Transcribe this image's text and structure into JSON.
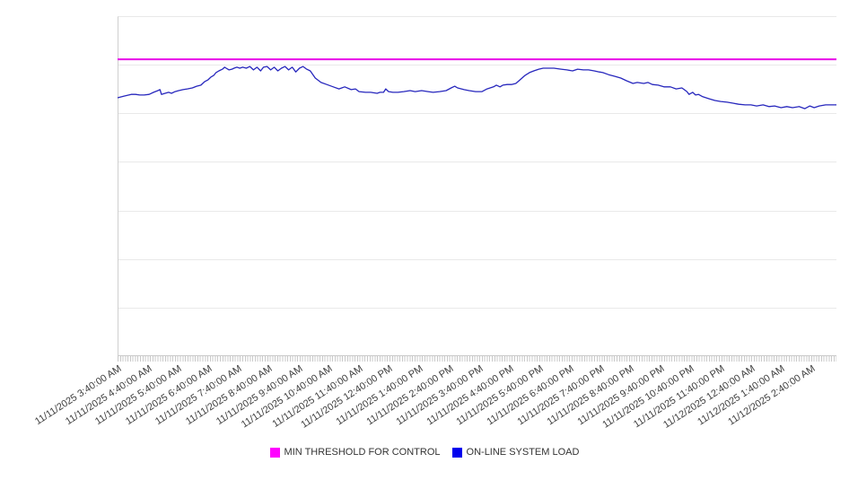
{
  "chart_data": {
    "type": "line",
    "title": "",
    "x_axis": {
      "labels": [
        "11/11/2025 3:40:00 AM",
        "11/11/2025 4:40:00 AM",
        "11/11/2025 5:40:00 AM",
        "11/11/2025 6:40:00 AM",
        "11/11/2025 7:40:00 AM",
        "11/11/2025 8:40:00 AM",
        "11/11/2025 9:40:00 AM",
        "11/11/2025 10:40:00 AM",
        "11/11/2025 11:40:00 AM",
        "11/11/2025 12:40:00 PM",
        "11/11/2025 1:40:00 PM",
        "11/11/2025 2:40:00 PM",
        "11/11/2025 3:40:00 PM",
        "11/11/2025 4:40:00 PM",
        "11/11/2025 5:40:00 PM",
        "11/11/2025 6:40:00 PM",
        "11/11/2025 7:40:00 PM",
        "11/11/2025 8:40:00 PM",
        "11/11/2025 9:40:00 PM",
        "11/11/2025 10:40:00 PM",
        "11/11/2025 11:40:00 PM",
        "11/12/2025 12:40:00 AM",
        "11/12/2025 1:40:00 AM",
        "11/12/2025 2:40:00 AM"
      ],
      "label_rotation_deg": -33,
      "minor_tick_interval_minutes": 5
    },
    "y_axis": {
      "tick_labels_visible": false,
      "gridline_divisions": 7,
      "range": [
        0,
        100
      ],
      "units": "percent_of_plot_height"
    },
    "series": [
      {
        "name": "MIN THRESHOLD FOR CONTROL",
        "type": "threshold-hline",
        "color": "#e800e8",
        "value": 87.3
      },
      {
        "name": "ON-LINE SYSTEM LOAD",
        "type": "line",
        "color": "#2727bd",
        "points": [
          [
            0,
            76.0
          ],
          [
            0.9,
            76.5
          ],
          [
            1.9,
            77.0
          ],
          [
            2.5,
            77.0
          ],
          [
            3.1,
            76.8
          ],
          [
            3.7,
            76.8
          ],
          [
            4.4,
            77.0
          ],
          [
            5.0,
            77.6
          ],
          [
            5.6,
            78.1
          ],
          [
            5.9,
            78.4
          ],
          [
            6.1,
            77.0
          ],
          [
            6.6,
            77.3
          ],
          [
            7.1,
            77.6
          ],
          [
            7.5,
            77.3
          ],
          [
            8.0,
            77.8
          ],
          [
            8.5,
            78.1
          ],
          [
            9.1,
            78.4
          ],
          [
            9.7,
            78.6
          ],
          [
            10.4,
            78.9
          ],
          [
            11.0,
            79.4
          ],
          [
            11.6,
            79.7
          ],
          [
            12.1,
            80.7
          ],
          [
            12.6,
            81.3
          ],
          [
            13.0,
            82.1
          ],
          [
            13.4,
            82.6
          ],
          [
            13.7,
            83.4
          ],
          [
            14.1,
            83.9
          ],
          [
            14.6,
            84.4
          ],
          [
            14.9,
            85.0
          ],
          [
            15.1,
            84.7
          ],
          [
            15.5,
            84.2
          ],
          [
            15.9,
            84.4
          ],
          [
            16.2,
            84.7
          ],
          [
            16.6,
            85.0
          ],
          [
            17.0,
            84.7
          ],
          [
            17.4,
            85.0
          ],
          [
            17.9,
            84.7
          ],
          [
            18.4,
            85.2
          ],
          [
            18.9,
            84.2
          ],
          [
            19.4,
            85.0
          ],
          [
            19.9,
            83.9
          ],
          [
            20.3,
            85.0
          ],
          [
            20.8,
            85.2
          ],
          [
            21.3,
            84.2
          ],
          [
            21.8,
            85.0
          ],
          [
            22.3,
            83.9
          ],
          [
            22.8,
            84.7
          ],
          [
            23.3,
            85.2
          ],
          [
            23.8,
            84.2
          ],
          [
            24.3,
            85.0
          ],
          [
            24.8,
            83.6
          ],
          [
            25.3,
            84.7
          ],
          [
            25.8,
            85.2
          ],
          [
            26.3,
            84.4
          ],
          [
            26.8,
            83.9
          ],
          [
            27.5,
            81.8
          ],
          [
            28.3,
            80.5
          ],
          [
            29.1,
            79.9
          ],
          [
            30.0,
            79.2
          ],
          [
            30.8,
            78.6
          ],
          [
            31.6,
            79.2
          ],
          [
            32.5,
            78.4
          ],
          [
            33.1,
            78.6
          ],
          [
            33.6,
            77.8
          ],
          [
            34.5,
            77.6
          ],
          [
            35.2,
            77.6
          ],
          [
            36.1,
            77.3
          ],
          [
            36.5,
            77.6
          ],
          [
            37.0,
            77.6
          ],
          [
            37.3,
            78.6
          ],
          [
            37.7,
            77.8
          ],
          [
            38.3,
            77.6
          ],
          [
            39.0,
            77.6
          ],
          [
            39.8,
            77.8
          ],
          [
            40.7,
            78.1
          ],
          [
            41.4,
            77.8
          ],
          [
            42.3,
            78.1
          ],
          [
            43.2,
            77.8
          ],
          [
            43.9,
            77.6
          ],
          [
            44.8,
            77.8
          ],
          [
            45.7,
            78.1
          ],
          [
            46.4,
            78.9
          ],
          [
            46.9,
            79.4
          ],
          [
            47.3,
            78.9
          ],
          [
            48.2,
            78.4
          ],
          [
            48.9,
            78.1
          ],
          [
            49.8,
            77.8
          ],
          [
            50.7,
            77.8
          ],
          [
            51.4,
            78.6
          ],
          [
            52.3,
            79.2
          ],
          [
            52.7,
            79.7
          ],
          [
            53.2,
            79.2
          ],
          [
            53.6,
            79.7
          ],
          [
            54.2,
            79.9
          ],
          [
            54.8,
            79.9
          ],
          [
            55.4,
            80.2
          ],
          [
            56.1,
            81.5
          ],
          [
            56.7,
            82.6
          ],
          [
            57.3,
            83.4
          ],
          [
            57.9,
            83.9
          ],
          [
            58.6,
            84.4
          ],
          [
            59.2,
            84.7
          ],
          [
            59.8,
            84.7
          ],
          [
            60.7,
            84.7
          ],
          [
            61.7,
            84.4
          ],
          [
            62.5,
            84.2
          ],
          [
            63.3,
            83.9
          ],
          [
            64.0,
            84.4
          ],
          [
            64.8,
            84.2
          ],
          [
            65.5,
            84.2
          ],
          [
            66.3,
            83.9
          ],
          [
            67.0,
            83.6
          ],
          [
            67.5,
            83.4
          ],
          [
            68.3,
            82.8
          ],
          [
            69.2,
            82.3
          ],
          [
            70.0,
            81.8
          ],
          [
            70.8,
            81.0
          ],
          [
            71.7,
            80.2
          ],
          [
            72.3,
            80.5
          ],
          [
            73.2,
            80.2
          ],
          [
            73.8,
            80.5
          ],
          [
            74.4,
            79.9
          ],
          [
            75.2,
            79.7
          ],
          [
            76.0,
            79.2
          ],
          [
            76.9,
            79.2
          ],
          [
            77.7,
            78.6
          ],
          [
            78.5,
            78.9
          ],
          [
            79.2,
            77.8
          ],
          [
            79.5,
            77.0
          ],
          [
            80.0,
            77.6
          ],
          [
            80.4,
            76.8
          ],
          [
            80.8,
            77.0
          ],
          [
            81.4,
            76.3
          ],
          [
            82.3,
            75.7
          ],
          [
            83.1,
            75.2
          ],
          [
            83.9,
            74.9
          ],
          [
            84.8,
            74.7
          ],
          [
            85.6,
            74.4
          ],
          [
            86.4,
            74.1
          ],
          [
            87.3,
            73.9
          ],
          [
            88.1,
            73.9
          ],
          [
            88.9,
            73.6
          ],
          [
            89.8,
            73.9
          ],
          [
            90.6,
            73.4
          ],
          [
            91.4,
            73.6
          ],
          [
            92.3,
            73.1
          ],
          [
            93.1,
            73.4
          ],
          [
            93.9,
            73.1
          ],
          [
            94.8,
            73.4
          ],
          [
            95.6,
            72.8
          ],
          [
            96.3,
            73.6
          ],
          [
            96.9,
            73.1
          ],
          [
            97.6,
            73.6
          ],
          [
            98.5,
            73.9
          ],
          [
            99.4,
            73.9
          ],
          [
            100,
            73.9
          ]
        ]
      }
    ],
    "legend": {
      "position": "bottom-center",
      "items": [
        {
          "label": "MIN THRESHOLD FOR CONTROL",
          "color": "#ff00ff"
        },
        {
          "label": "ON-LINE SYSTEM LOAD",
          "color": "#0000ee"
        }
      ]
    }
  }
}
